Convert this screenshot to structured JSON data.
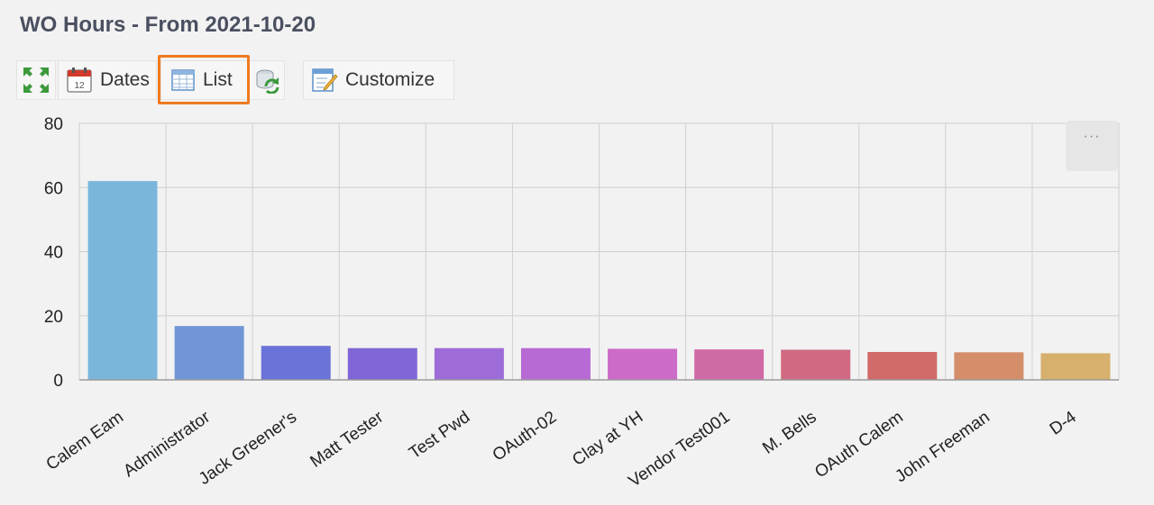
{
  "header": {
    "title": "WO Hours - From 2021-10-20"
  },
  "toolbar": {
    "expand_icon": "expand-arrows-icon",
    "dates_label": "Dates",
    "dates_icon": "calendar-icon",
    "list_label": "List",
    "list_icon": "table-list-icon",
    "refresh_icon": "refresh-icon",
    "customize_label": "Customize",
    "customize_icon": "edit-form-icon"
  },
  "chart_menu": {
    "label": "···"
  },
  "chart_data": {
    "type": "bar",
    "title": "",
    "xlabel": "",
    "ylabel": "",
    "categories": [
      "Calem Eam",
      "Administrator",
      "Jack Greener's",
      "Matt Tester",
      "Test Pwd",
      "OAuth-02",
      "Clay at YH",
      "Vendor Test001",
      "M. Bells",
      "OAuth Calem",
      "John Freeman",
      "D-4"
    ],
    "values": [
      62,
      16.8,
      10.6,
      9.9,
      9.9,
      9.9,
      9.7,
      9.5,
      9.4,
      8.7,
      8.6,
      8.3
    ],
    "ylim": [
      0,
      80
    ],
    "yticks": [
      "0",
      "20",
      "40",
      "60",
      "80"
    ],
    "grid": true,
    "legend": "none",
    "colors": [
      "#7ab6d9",
      "#7196d6",
      "#6a73d8",
      "#8066d6",
      "#9d6cd8",
      "#b76ad4",
      "#cc6cc8",
      "#d06aa6",
      "#d06a82",
      "#d06b6a",
      "#d48e6a",
      "#d6b06c"
    ]
  }
}
